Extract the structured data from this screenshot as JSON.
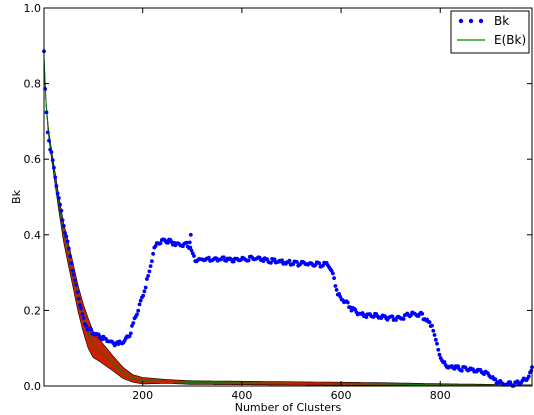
{
  "chart_data": {
    "type": "scatter",
    "title": "",
    "xlabel": "Number of Clusters",
    "ylabel": "Bk",
    "xlim": [
      1,
      985
    ],
    "ylim": [
      0,
      1.0
    ],
    "xticks": [
      200,
      400,
      600,
      800
    ],
    "yticks": [
      0.0,
      0.2,
      0.4,
      0.6,
      0.8,
      1.0
    ],
    "xtick_labels": [
      "200",
      "400",
      "600",
      "800"
    ],
    "ytick_labels": [
      "0.0",
      "0.2",
      "0.4",
      "0.6",
      "0.8",
      "1.0"
    ],
    "grid": false,
    "legend_position": "top-right",
    "series": [
      {
        "name": "Bk",
        "style": "points",
        "color": "#0000ff",
        "anchors": [
          [
            1,
            0.88
          ],
          [
            3,
            0.8
          ],
          [
            5,
            0.74
          ],
          [
            8,
            0.68
          ],
          [
            12,
            0.64
          ],
          [
            18,
            0.6
          ],
          [
            25,
            0.54
          ],
          [
            30,
            0.5
          ],
          [
            40,
            0.43
          ],
          [
            50,
            0.37
          ],
          [
            60,
            0.3
          ],
          [
            70,
            0.24
          ],
          [
            80,
            0.18
          ],
          [
            90,
            0.15
          ],
          [
            100,
            0.14
          ],
          [
            115,
            0.13
          ],
          [
            130,
            0.12
          ],
          [
            150,
            0.11
          ],
          [
            165,
            0.12
          ],
          [
            175,
            0.14
          ],
          [
            185,
            0.18
          ],
          [
            195,
            0.22
          ],
          [
            205,
            0.26
          ],
          [
            215,
            0.31
          ],
          [
            222,
            0.36
          ],
          [
            230,
            0.38
          ],
          [
            245,
            0.385
          ],
          [
            260,
            0.38
          ],
          [
            275,
            0.375
          ],
          [
            285,
            0.375
          ],
          [
            295,
            0.37
          ],
          [
            305,
            0.335
          ],
          [
            350,
            0.335
          ],
          [
            400,
            0.335
          ],
          [
            430,
            0.338
          ],
          [
            450,
            0.332
          ],
          [
            500,
            0.325
          ],
          [
            540,
            0.322
          ],
          [
            575,
            0.32
          ],
          [
            582,
            0.3
          ],
          [
            588,
            0.27
          ],
          [
            595,
            0.24
          ],
          [
            610,
            0.22
          ],
          [
            625,
            0.2
          ],
          [
            640,
            0.19
          ],
          [
            670,
            0.185
          ],
          [
            700,
            0.18
          ],
          [
            720,
            0.18
          ],
          [
            740,
            0.19
          ],
          [
            760,
            0.19
          ],
          [
            775,
            0.17
          ],
          [
            785,
            0.16
          ],
          [
            790,
            0.12
          ],
          [
            798,
            0.09
          ],
          [
            805,
            0.06
          ],
          [
            820,
            0.05
          ],
          [
            850,
            0.045
          ],
          [
            880,
            0.04
          ],
          [
            900,
            0.03
          ],
          [
            910,
            0.015
          ],
          [
            925,
            0.005
          ],
          [
            945,
            0.004
          ],
          [
            960,
            0.008
          ],
          [
            975,
            0.02
          ],
          [
            985,
            0.04
          ]
        ],
        "extra_points": [
          [
            297,
            0.4
          ],
          [
            295,
            0.38
          ],
          [
            252,
            0.385
          ],
          [
            120,
            0.13
          ],
          [
            985,
            0.05
          ]
        ]
      },
      {
        "name": "E(Bk)",
        "style": "line",
        "color": "#007f00",
        "band_color": "#cc2200",
        "points": [
          [
            1,
            0.87
          ],
          [
            5,
            0.75
          ],
          [
            10,
            0.67
          ],
          [
            20,
            0.58
          ],
          [
            30,
            0.49
          ],
          [
            40,
            0.41
          ],
          [
            50,
            0.35
          ],
          [
            60,
            0.29
          ],
          [
            70,
            0.23
          ],
          [
            80,
            0.18
          ],
          [
            90,
            0.14
          ],
          [
            100,
            0.11
          ],
          [
            120,
            0.085
          ],
          [
            140,
            0.06
          ],
          [
            160,
            0.035
          ],
          [
            180,
            0.02
          ],
          [
            200,
            0.014
          ],
          [
            250,
            0.012
          ],
          [
            300,
            0.009
          ],
          [
            400,
            0.008
          ],
          [
            500,
            0.007
          ],
          [
            600,
            0.006
          ],
          [
            700,
            0.005
          ],
          [
            800,
            0.003
          ],
          [
            900,
            0.002
          ],
          [
            985,
            0.001
          ]
        ],
        "band_halfwidth": [
          [
            1,
            0.005
          ],
          [
            30,
            0.02
          ],
          [
            50,
            0.03
          ],
          [
            70,
            0.035
          ],
          [
            90,
            0.04
          ],
          [
            110,
            0.03
          ],
          [
            140,
            0.02
          ],
          [
            180,
            0.01
          ],
          [
            250,
            0.005
          ],
          [
            600,
            0.004
          ],
          [
            985,
            0.002
          ]
        ]
      }
    ]
  }
}
